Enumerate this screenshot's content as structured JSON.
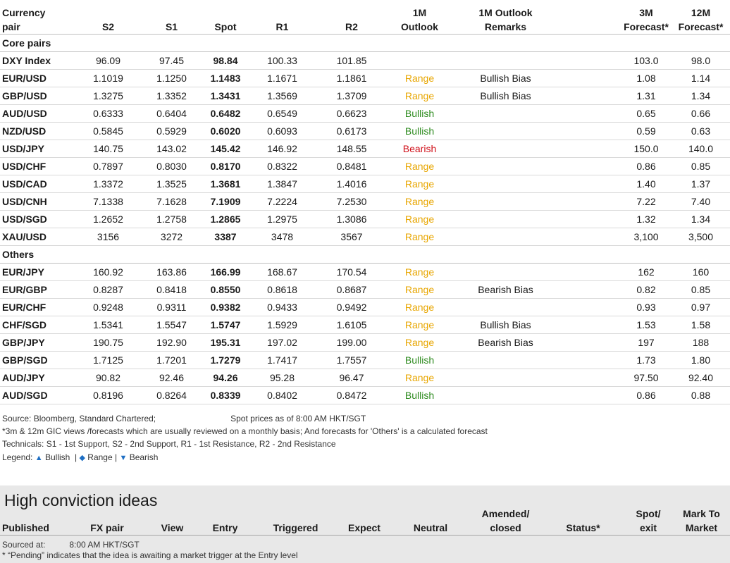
{
  "table": {
    "headers": {
      "pair": [
        "Currency",
        "pair"
      ],
      "s2": "S2",
      "s1": "S1",
      "spot": "Spot",
      "r1": "R1",
      "r2": "R2",
      "outlook": [
        "1M",
        "Outlook"
      ],
      "remarks": [
        "1M Outlook",
        "Remarks"
      ],
      "f3m": [
        "3M",
        "Forecast*"
      ],
      "f12m": [
        "12M",
        "Forecast*"
      ]
    },
    "sections": [
      {
        "title": "Core pairs",
        "rows": [
          {
            "pair": "DXY Index",
            "s2": "96.09",
            "s1": "97.45",
            "spot": "98.84",
            "r1": "100.33",
            "r2": "101.85",
            "outlook": "",
            "remarks": "",
            "f3m": "103.0",
            "f12m": "98.0"
          },
          {
            "pair": "EUR/USD",
            "s2": "1.1019",
            "s1": "1.1250",
            "spot": "1.1483",
            "r1": "1.1671",
            "r2": "1.1861",
            "outlook": "Range",
            "remarks": "Bullish Bias",
            "f3m": "1.08",
            "f12m": "1.14"
          },
          {
            "pair": "GBP/USD",
            "s2": "1.3275",
            "s1": "1.3352",
            "spot": "1.3431",
            "r1": "1.3569",
            "r2": "1.3709",
            "outlook": "Range",
            "remarks": "Bullish Bias",
            "f3m": "1.31",
            "f12m": "1.34"
          },
          {
            "pair": "AUD/USD",
            "s2": "0.6333",
            "s1": "0.6404",
            "spot": "0.6482",
            "r1": "0.6549",
            "r2": "0.6623",
            "outlook": "Bullish",
            "remarks": "",
            "f3m": "0.65",
            "f12m": "0.66"
          },
          {
            "pair": "NZD/USD",
            "s2": "0.5845",
            "s1": "0.5929",
            "spot": "0.6020",
            "r1": "0.6093",
            "r2": "0.6173",
            "outlook": "Bullish",
            "remarks": "",
            "f3m": "0.59",
            "f12m": "0.63"
          },
          {
            "pair": "USD/JPY",
            "s2": "140.75",
            "s1": "143.02",
            "spot": "145.42",
            "r1": "146.92",
            "r2": "148.55",
            "outlook": "Bearish",
            "remarks": "",
            "f3m": "150.0",
            "f12m": "140.0"
          },
          {
            "pair": "USD/CHF",
            "s2": "0.7897",
            "s1": "0.8030",
            "spot": "0.8170",
            "r1": "0.8322",
            "r2": "0.8481",
            "outlook": "Range",
            "remarks": "",
            "f3m": "0.86",
            "f12m": "0.85"
          },
          {
            "pair": "USD/CAD",
            "s2": "1.3372",
            "s1": "1.3525",
            "spot": "1.3681",
            "r1": "1.3847",
            "r2": "1.4016",
            "outlook": "Range",
            "remarks": "",
            "f3m": "1.40",
            "f12m": "1.37"
          },
          {
            "pair": "USD/CNH",
            "s2": "7.1338",
            "s1": "7.1628",
            "spot": "7.1909",
            "r1": "7.2224",
            "r2": "7.2530",
            "outlook": "Range",
            "remarks": "",
            "f3m": "7.22",
            "f12m": "7.40"
          },
          {
            "pair": "USD/SGD",
            "s2": "1.2652",
            "s1": "1.2758",
            "spot": "1.2865",
            "r1": "1.2975",
            "r2": "1.3086",
            "outlook": "Range",
            "remarks": "",
            "f3m": "1.32",
            "f12m": "1.34"
          },
          {
            "pair": "XAU/USD",
            "s2": "3156",
            "s1": "3272",
            "spot": "3387",
            "r1": "3478",
            "r2": "3567",
            "outlook": "Range",
            "remarks": "",
            "f3m": "3,100",
            "f12m": "3,500"
          }
        ]
      },
      {
        "title": "Others",
        "rows": [
          {
            "pair": "EUR/JPY",
            "s2": "160.92",
            "s1": "163.86",
            "spot": "166.99",
            "r1": "168.67",
            "r2": "170.54",
            "outlook": "Range",
            "remarks": "",
            "f3m": "162",
            "f12m": "160"
          },
          {
            "pair": "EUR/GBP",
            "s2": "0.8287",
            "s1": "0.8418",
            "spot": "0.8550",
            "r1": "0.8618",
            "r2": "0.8687",
            "outlook": "Range",
            "remarks": "Bearish Bias",
            "f3m": "0.82",
            "f12m": "0.85"
          },
          {
            "pair": "EUR/CHF",
            "s2": "0.9248",
            "s1": "0.9311",
            "spot": "0.9382",
            "r1": "0.9433",
            "r2": "0.9492",
            "outlook": "Range",
            "remarks": "",
            "f3m": "0.93",
            "f12m": "0.97"
          },
          {
            "pair": "CHF/SGD",
            "s2": "1.5341",
            "s1": "1.5547",
            "spot": "1.5747",
            "r1": "1.5929",
            "r2": "1.6105",
            "outlook": "Range",
            "remarks": "Bullish Bias",
            "f3m": "1.53",
            "f12m": "1.58"
          },
          {
            "pair": "GBP/JPY",
            "s2": "190.75",
            "s1": "192.90",
            "spot": "195.31",
            "r1": "197.02",
            "r2": "199.00",
            "outlook": "Range",
            "remarks": "Bearish Bias",
            "f3m": "197",
            "f12m": "188"
          },
          {
            "pair": "GBP/SGD",
            "s2": "1.7125",
            "s1": "1.7201",
            "spot": "1.7279",
            "r1": "1.7417",
            "r2": "1.7557",
            "outlook": "Bullish",
            "remarks": "",
            "f3m": "1.73",
            "f12m": "1.80"
          },
          {
            "pair": "AUD/JPY",
            "s2": "90.82",
            "s1": "92.46",
            "spot": "94.26",
            "r1": "95.28",
            "r2": "96.47",
            "outlook": "Range",
            "remarks": "",
            "f3m": "97.50",
            "f12m": "92.40"
          },
          {
            "pair": "AUD/SGD",
            "s2": "0.8196",
            "s1": "0.8264",
            "spot": "0.8339",
            "r1": "0.8402",
            "r2": "0.8472",
            "outlook": "Bullish",
            "remarks": "",
            "f3m": "0.86",
            "f12m": "0.88"
          }
        ]
      }
    ]
  },
  "notes": {
    "source": "Source: Bloomberg, Standard Chartered;",
    "spot_time": "Spot prices as of 8:00 AM HKT/SGT",
    "forecast_note": "*3m & 12m GIC views /forecasts which are usually reviewed on a monthly basis; And forecasts for 'Others' is a calculated forecast",
    "technicals": "Technicals: S1 - 1st Support, S2 - 2nd Support, R1 - 1st Resistance, R2 - 2nd Resistance"
  },
  "legend": {
    "prefix": "Legend:",
    "bullish": "Bullish",
    "range": "Range",
    "bearish": "Bearish",
    "separator": "|",
    "up_symbol": "▲",
    "diamond_symbol": "◆",
    "down_symbol": "▼"
  },
  "colors": {
    "range": "#e8a600",
    "bullish": "#2e8b1f",
    "bearish": "#d0101a",
    "legend_symbols": "#1f6fc4",
    "panel_background": "#e8e8e8"
  },
  "high_conviction": {
    "title": "High conviction ideas",
    "headers": {
      "published": "Published",
      "fx_pair": "FX pair",
      "view": "View",
      "entry": "Entry",
      "triggered": "Triggered",
      "expect": "Expect",
      "neutral": "Neutral",
      "amended": [
        "Amended/",
        "closed"
      ],
      "status": "Status*",
      "spot_exit": [
        "Spot/",
        "exit"
      ],
      "mtm": [
        "Mark To",
        "Market"
      ]
    },
    "sourced_label": "Sourced at:",
    "sourced_time": "8:00 AM HKT/SGT",
    "pending_note": "* “Pending” indicates that the idea is awaiting a market trigger at the Entry level"
  }
}
